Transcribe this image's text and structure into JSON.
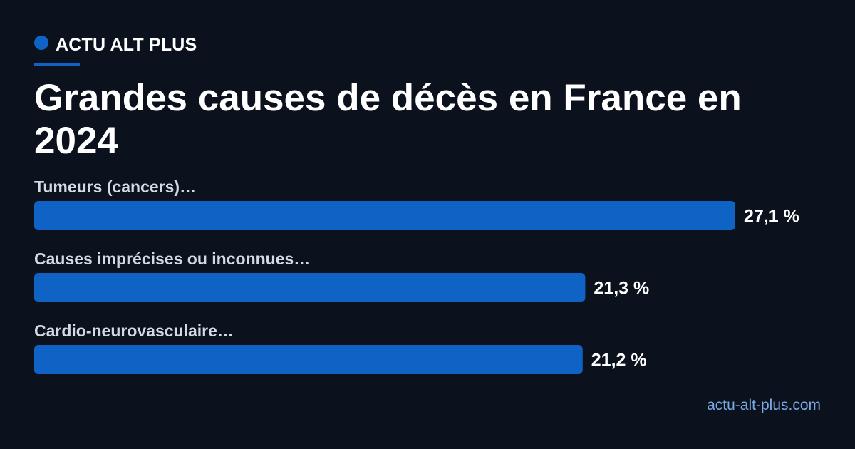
{
  "brand": {
    "name": "ACTU ALT PLUS"
  },
  "chart_data": {
    "type": "bar",
    "orientation": "horizontal",
    "title": "Grandes causes de décès en France en 2024",
    "categories": [
      "Tumeurs (cancers)…",
      "Causes imprécises ou inconnues…",
      "Cardio-neurovasculaire…"
    ],
    "values": [
      27.1,
      21.3,
      21.2
    ],
    "value_labels": [
      "27,1 %",
      "21,3 %",
      "21,2 %"
    ],
    "unit": "%",
    "bar_color": "#0e63c4",
    "grid": false,
    "legend": "none"
  },
  "footer": {
    "site": "actu-alt-plus.com"
  }
}
